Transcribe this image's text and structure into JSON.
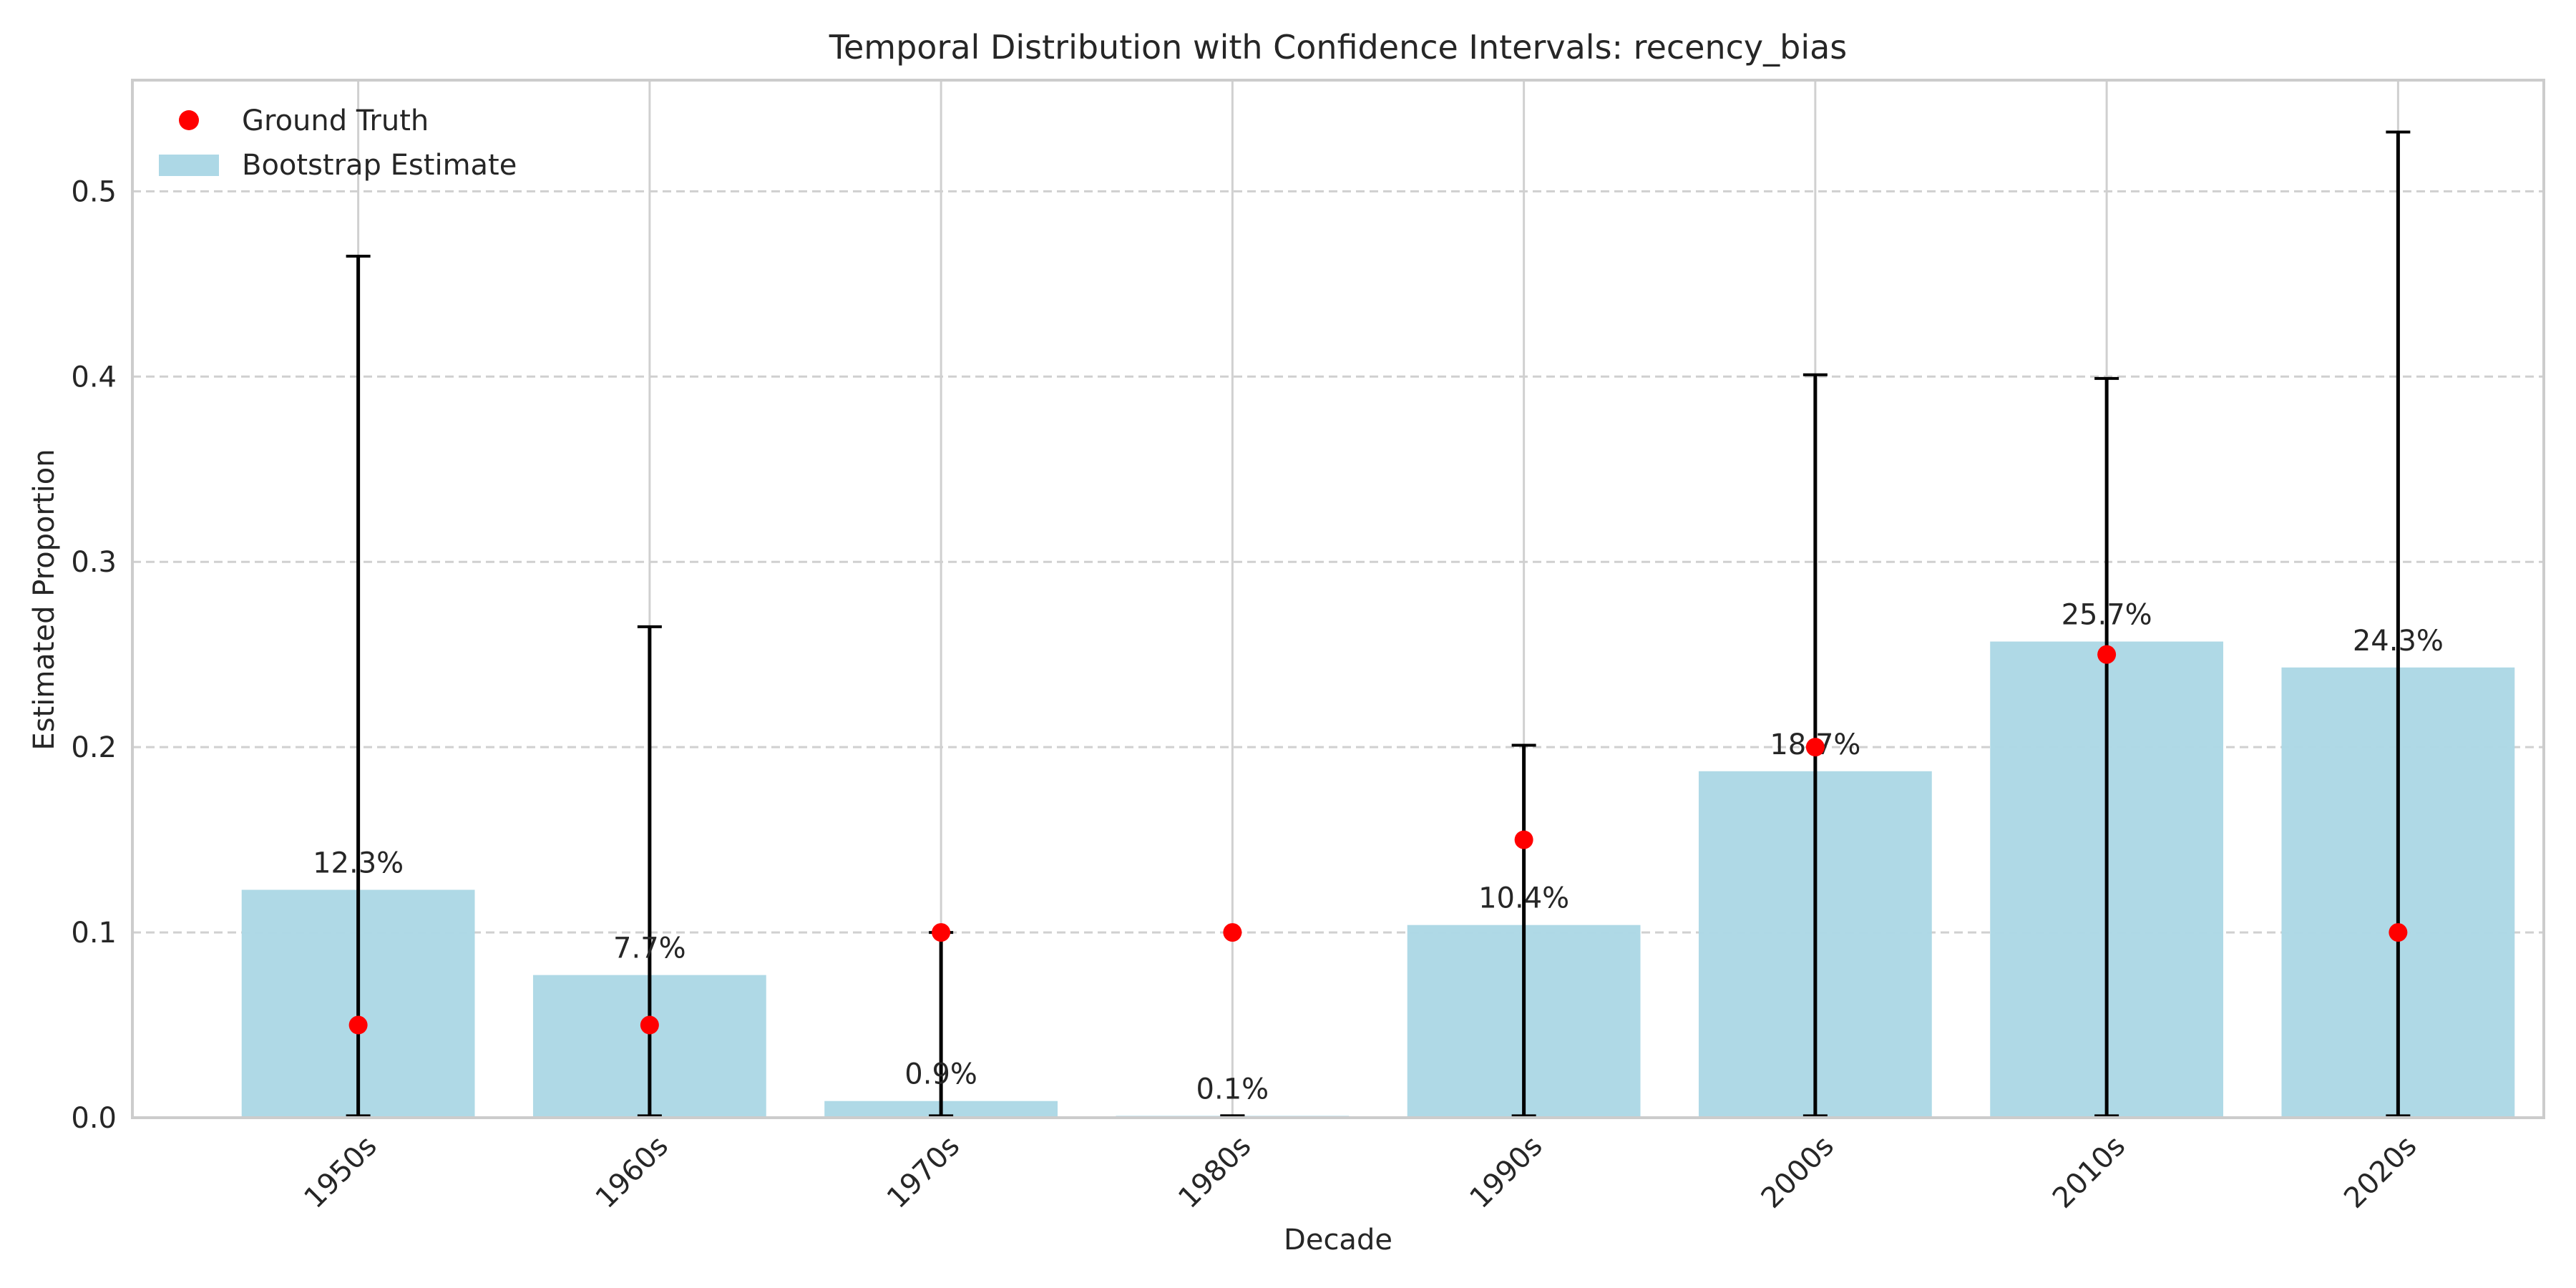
{
  "chart_data": {
    "type": "bar",
    "title": "Temporal Distribution with Confidence Intervals: recency_bias",
    "xlabel": "Decade",
    "ylabel": "Estimated Proportion",
    "ylim": [
      0,
      0.56
    ],
    "yticks": [
      0.0,
      0.1,
      0.2,
      0.3,
      0.4,
      0.5
    ],
    "ytick_labels": [
      "0.0",
      "0.1",
      "0.2",
      "0.3",
      "0.4",
      "0.5"
    ],
    "categories": [
      "1950s",
      "1960s",
      "1970s",
      "1980s",
      "1990s",
      "2000s",
      "2010s",
      "2020s"
    ],
    "series": [
      {
        "name": "Bootstrap Estimate",
        "type": "bar",
        "color": "#add8e6",
        "values": [
          0.123,
          0.077,
          0.009,
          0.001,
          0.104,
          0.187,
          0.257,
          0.243
        ],
        "value_labels": [
          "12.3%",
          "7.7%",
          "0.9%",
          "0.1%",
          "10.4%",
          "18.7%",
          "25.7%",
          "24.3%"
        ],
        "ci_low": [
          0.001,
          0.001,
          0.001,
          0.001,
          0.001,
          0.001,
          0.001,
          0.001
        ],
        "ci_high": [
          0.465,
          0.265,
          0.1,
          0.001,
          0.201,
          0.401,
          0.399,
          0.532
        ]
      },
      {
        "name": "Ground Truth",
        "type": "scatter",
        "color": "#ff0000",
        "values": [
          0.05,
          0.05,
          0.1,
          0.1,
          0.15,
          0.2,
          0.25,
          0.1
        ]
      }
    ],
    "legend": {
      "position": "top-left",
      "entries": [
        "Ground Truth",
        "Bootstrap Estimate"
      ]
    },
    "grid": {
      "x": true,
      "y": true,
      "y_style": "dashed"
    },
    "errorbar_color": "#000000"
  }
}
